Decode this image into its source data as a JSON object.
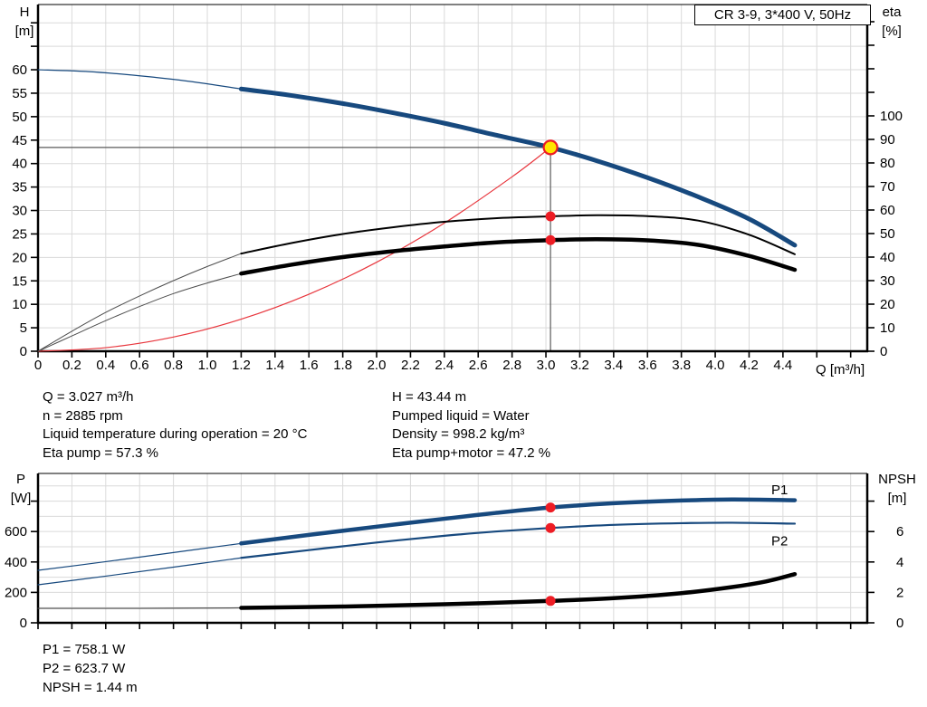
{
  "title_box": {
    "text": "CR 3-9, 3*400 V, 50Hz"
  },
  "colors": {
    "curve_blue": "#17497e",
    "red": "#ed1c24",
    "system_red": "#e8363d",
    "duty_fill": "#ffe600",
    "grid": "#dadada",
    "axis": "#000000",
    "thin_gray": "#4d4d4d",
    "guide": "#5a5a5a"
  },
  "chart_data": [
    {
      "id": "top",
      "type": "line",
      "x_axis": {
        "label": "Q [m³/h]",
        "min": 0,
        "max": 4.898,
        "tick_step": 0.2,
        "grid_step": 0.2,
        "label_limit": 4.4,
        "show_labels": true
      },
      "y_left": {
        "name": "H",
        "unit": "[m]",
        "min": 0,
        "max": 73.9,
        "tick_step": 5,
        "grid_step": 5,
        "label_limit": 60
      },
      "y_right": {
        "name": "eta",
        "unit": "[%]",
        "min": 0,
        "max": 147.3,
        "tick_step": 10,
        "label_limit": 100
      },
      "series": [
        {
          "name": "head-curve-thin",
          "axis": "left",
          "color": "#17497e",
          "width": 1.2,
          "points": [
            [
              0,
              60
            ],
            [
              0.3,
              59.6
            ],
            [
              0.6,
              58.7
            ],
            [
              0.9,
              57.5
            ],
            [
              1.2,
              55.9
            ]
          ]
        },
        {
          "name": "head-curve",
          "axis": "left",
          "color": "#17497e",
          "width": 5,
          "points": [
            [
              1.2,
              55.9
            ],
            [
              1.5,
              54.5
            ],
            [
              1.8,
              52.8
            ],
            [
              2.1,
              50.8
            ],
            [
              2.4,
              48.6
            ],
            [
              2.7,
              46.1
            ],
            [
              3.027,
              43.44
            ],
            [
              3.3,
              40.6
            ],
            [
              3.6,
              37.0
            ],
            [
              3.9,
              32.9
            ],
            [
              4.2,
              28.2
            ],
            [
              4.47,
              22.6
            ]
          ]
        },
        {
          "name": "system-curve",
          "axis": "left",
          "color": "#e8363d",
          "width": 1.2,
          "points": [
            [
              0,
              0
            ],
            [
              0.4,
              0.76
            ],
            [
              0.8,
              3.03
            ],
            [
              1.2,
              6.83
            ],
            [
              1.6,
              12.14
            ],
            [
              2.0,
              18.97
            ],
            [
              2.4,
              27.32
            ],
            [
              2.8,
              37.18
            ],
            [
              3.027,
              43.44
            ]
          ]
        },
        {
          "name": "eta-pump-thin",
          "axis": "right",
          "color": "#4d4d4d",
          "width": 1,
          "points": [
            [
              0,
              0
            ],
            [
              0.2,
              8.5
            ],
            [
              0.4,
              16.5
            ],
            [
              0.6,
              23.5
            ],
            [
              0.8,
              30
            ],
            [
              1.0,
              36
            ],
            [
              1.2,
              41.5
            ]
          ]
        },
        {
          "name": "eta-pump",
          "axis": "right",
          "color": "#000000",
          "width": 2,
          "points": [
            [
              1.2,
              41.5
            ],
            [
              1.5,
              46
            ],
            [
              1.8,
              49.8
            ],
            [
              2.1,
              52.7
            ],
            [
              2.4,
              55
            ],
            [
              2.7,
              56.5
            ],
            [
              3.027,
              57.3
            ],
            [
              3.3,
              57.8
            ],
            [
              3.6,
              57.4
            ],
            [
              3.9,
              55.5
            ],
            [
              4.2,
              49.5
            ],
            [
              4.47,
              41.2
            ]
          ]
        },
        {
          "name": "eta-pump-motor-thin",
          "axis": "right",
          "color": "#4d4d4d",
          "width": 1,
          "points": [
            [
              0,
              0
            ],
            [
              0.2,
              6.5
            ],
            [
              0.4,
              13
            ],
            [
              0.6,
              19
            ],
            [
              0.8,
              24.5
            ],
            [
              1.0,
              29
            ],
            [
              1.2,
              33
            ]
          ]
        },
        {
          "name": "eta-pump-motor",
          "axis": "right",
          "color": "#000000",
          "width": 4.5,
          "points": [
            [
              1.2,
              33
            ],
            [
              1.5,
              36.8
            ],
            [
              1.8,
              40
            ],
            [
              2.1,
              42.5
            ],
            [
              2.4,
              44.5
            ],
            [
              2.7,
              46.2
            ],
            [
              3.027,
              47.2
            ],
            [
              3.3,
              47.6
            ],
            [
              3.6,
              47.1
            ],
            [
              3.9,
              45.2
            ],
            [
              4.2,
              40.5
            ],
            [
              4.47,
              34.6
            ]
          ]
        }
      ],
      "guides": [
        {
          "type": "vertical",
          "q": 3.027,
          "v_from": 43.44
        },
        {
          "type": "horizontal",
          "v": 43.44,
          "q_to": 3.027
        }
      ],
      "markers": [
        {
          "type": "dot",
          "q": 3.027,
          "v": 57.3,
          "axis": "right"
        },
        {
          "type": "dot",
          "q": 3.027,
          "v": 47.2,
          "axis": "right"
        },
        {
          "type": "duty",
          "q": 3.027,
          "v": 43.44,
          "axis": "left"
        }
      ],
      "labels": []
    },
    {
      "id": "bottom",
      "type": "line",
      "x_axis": {
        "label": "",
        "min": 0,
        "max": 4.898,
        "tick_step": 0.2,
        "grid_step": 0.2,
        "label_limit": 4.4,
        "show_labels": false
      },
      "y_left": {
        "name": "P",
        "unit": "[W]",
        "min": 0,
        "max": 982,
        "tick_step": 200,
        "grid_step": 100,
        "label_limit": 600
      },
      "y_right": {
        "name": "NPSH",
        "unit": "[m]",
        "min": 0,
        "max": 9.82,
        "tick_step": 2,
        "label_limit": 6
      },
      "series": [
        {
          "name": "p1-curve-thin",
          "axis": "left",
          "color": "#17497e",
          "width": 1.2,
          "points": [
            [
              0,
              345
            ],
            [
              0.4,
              402
            ],
            [
              0.8,
              462
            ],
            [
              1.2,
              522
            ]
          ]
        },
        {
          "name": "p1-curve",
          "axis": "left",
          "color": "#17497e",
          "width": 4.5,
          "points": [
            [
              1.2,
              522
            ],
            [
              1.6,
              578
            ],
            [
              2.0,
              632
            ],
            [
              2.4,
              684
            ],
            [
              2.7,
              722
            ],
            [
              3.027,
              758.1
            ],
            [
              3.4,
              786
            ],
            [
              3.8,
              804
            ],
            [
              4.1,
              811
            ],
            [
              4.47,
              806
            ]
          ]
        },
        {
          "name": "p2-curve-thin",
          "axis": "left",
          "color": "#17497e",
          "width": 1.2,
          "points": [
            [
              0,
              250
            ],
            [
              0.4,
              307
            ],
            [
              0.8,
              366
            ],
            [
              1.2,
              427
            ]
          ]
        },
        {
          "name": "p2-curve",
          "axis": "left",
          "color": "#17497e",
          "width": 2.2,
          "points": [
            [
              1.2,
              427
            ],
            [
              1.6,
              478
            ],
            [
              2.0,
              528
            ],
            [
              2.4,
              572
            ],
            [
              2.7,
              600
            ],
            [
              3.027,
              623.7
            ],
            [
              3.4,
              644
            ],
            [
              3.8,
              655
            ],
            [
              4.1,
              658
            ],
            [
              4.47,
              652
            ]
          ]
        },
        {
          "name": "npsh-curve-thin",
          "axis": "right",
          "color": "#4d4d4d",
          "width": 1.2,
          "points": [
            [
              0,
              0.95
            ],
            [
              0.6,
              0.95
            ],
            [
              1.2,
              0.98
            ]
          ]
        },
        {
          "name": "npsh-curve",
          "axis": "right",
          "color": "#000000",
          "width": 4.5,
          "points": [
            [
              1.2,
              0.98
            ],
            [
              1.8,
              1.07
            ],
            [
              2.4,
              1.22
            ],
            [
              3.027,
              1.44
            ],
            [
              3.4,
              1.62
            ],
            [
              3.8,
              1.95
            ],
            [
              4.1,
              2.35
            ],
            [
              4.3,
              2.72
            ],
            [
              4.47,
              3.2
            ]
          ]
        }
      ],
      "guides": [],
      "markers": [
        {
          "type": "dot",
          "q": 3.027,
          "v": 758.1,
          "axis": "left"
        },
        {
          "type": "dot",
          "q": 3.027,
          "v": 623.7,
          "axis": "left"
        },
        {
          "type": "dot",
          "q": 3.027,
          "v": 1.44,
          "axis": "right"
        }
      ],
      "labels": [
        {
          "text": "P1",
          "q": 4.38,
          "v": 875,
          "axis": "left",
          "color": "#17497e"
        },
        {
          "text": "P2",
          "q": 4.38,
          "v": 540,
          "axis": "left",
          "color": "#17497e"
        }
      ]
    }
  ],
  "annotations": {
    "left": [
      "Q = 3.027 m³/h",
      "n = 2885 rpm",
      "Liquid temperature during operation = 20 °C",
      "Eta pump = 57.3 %"
    ],
    "right": [
      "H = 43.44 m",
      "Pumped liquid = Water",
      "Density = 998.2 kg/m³",
      "Eta pump+motor = 47.2 %"
    ]
  },
  "footer": [
    "P1 = 758.1 W",
    "P2 = 623.7 W",
    "NPSH = 1.44 m"
  ]
}
